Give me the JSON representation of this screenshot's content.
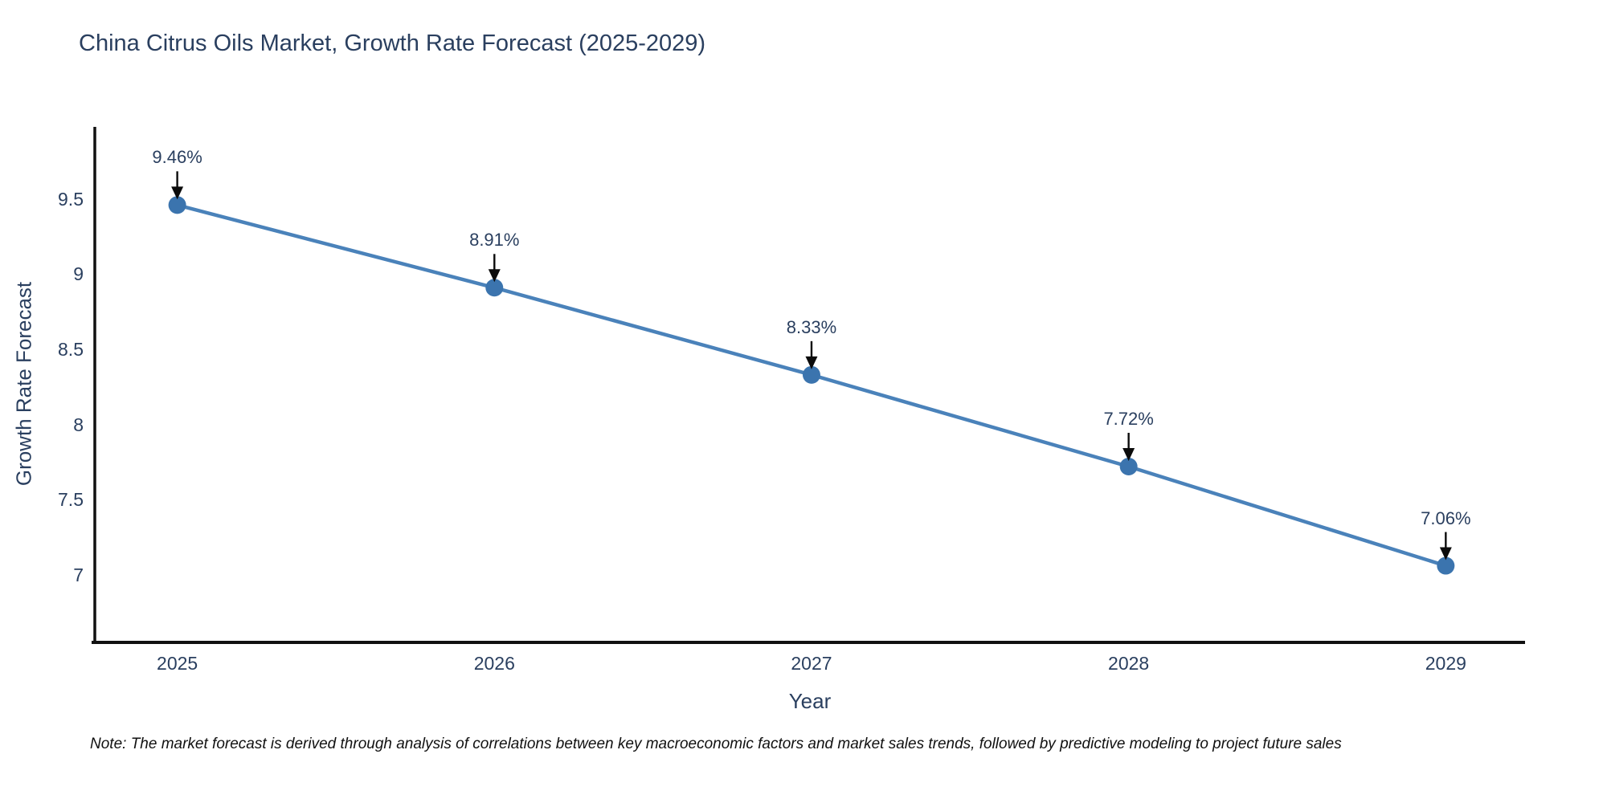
{
  "note": "Note: The market forecast is derived through analysis of correlations between key macroeconomic factors and market sales trends, followed by predictive modeling to project future sales",
  "chart_data": {
    "type": "line",
    "title": "China Citrus Oils Market, Growth Rate Forecast (2025-2029)",
    "xlabel": "Year",
    "ylabel": "Growth Rate Forecast",
    "x": [
      2025,
      2026,
      2027,
      2028,
      2029
    ],
    "values": [
      9.46,
      8.91,
      8.33,
      7.72,
      7.06
    ],
    "point_labels": [
      "9.46%",
      "8.91%",
      "8.33%",
      "7.72%",
      "7.06%"
    ],
    "yticks": [
      9.5,
      9,
      8.5,
      8,
      7.5,
      7
    ],
    "xlim": [
      2024.74,
      2029.25
    ],
    "ylim": [
      6.55,
      9.98
    ],
    "grid": false,
    "legend": false,
    "line_color": "#4a82ba",
    "marker_color": "#3b74ae",
    "axis_color": "#111111",
    "annotation_arrow_color": "#0b0b0b"
  }
}
